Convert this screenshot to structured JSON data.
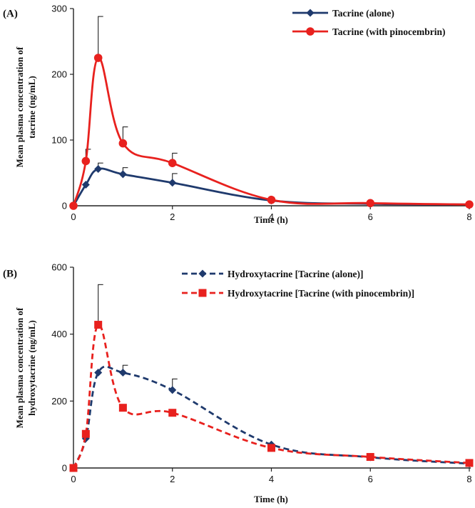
{
  "colors": {
    "navy": "#1f3a6d",
    "red": "#e8211e",
    "axis": "#222222"
  },
  "chart_data": [
    {
      "type": "line",
      "panel": "(A)",
      "title": "",
      "xlabel": "Time (h)",
      "ylabel": "Mean plasma concentration of tacrine (ng/mL)",
      "ylabel_lines": [
        "Mean plasma concentration of",
        "tacrine (ng/mL)"
      ],
      "xlim": [
        0,
        8
      ],
      "ylim": [
        0,
        300
      ],
      "xticks": [
        0,
        2,
        4,
        6,
        8
      ],
      "yticks": [
        0,
        100,
        200,
        300
      ],
      "legend_position": "top-right",
      "series": [
        {
          "name": "Tacrine (alone)",
          "color": "#1f3a6d",
          "line_style": "solid",
          "marker": "diamond",
          "x": [
            0,
            0.25,
            0.5,
            1,
            2,
            4,
            6,
            8
          ],
          "y": [
            0,
            32,
            56,
            48,
            35,
            8,
            3,
            2
          ],
          "err": [
            0,
            0,
            9,
            10,
            14,
            0,
            0,
            0
          ]
        },
        {
          "name": "Tacrine (with pinocembrin)",
          "color": "#e8211e",
          "line_style": "solid",
          "marker": "circle",
          "x": [
            0,
            0.25,
            0.5,
            1,
            2,
            4,
            6,
            8
          ],
          "y": [
            0,
            68,
            225,
            95,
            65,
            9,
            4,
            2
          ],
          "err": [
            0,
            18,
            63,
            25,
            15,
            0,
            0,
            0
          ]
        }
      ]
    },
    {
      "type": "line",
      "panel": "(B)",
      "title": "",
      "xlabel": "Time (h)",
      "ylabel": "Mean plasma concentration of hydroxytacrine (ng/mL)",
      "ylabel_lines": [
        "Mean plasma concentration of",
        "hydroxytacrine (ng/mL)"
      ],
      "xlim": [
        0,
        8
      ],
      "ylim": [
        0,
        600
      ],
      "xticks": [
        0,
        2,
        4,
        6,
        8
      ],
      "yticks": [
        0,
        200,
        400,
        600
      ],
      "legend_position": "top-right",
      "series": [
        {
          "name": "Hydroxytacrine [Tacrine (alone)]",
          "color": "#1f3a6d",
          "line_style": "dashed",
          "marker": "diamond",
          "x": [
            0,
            0.25,
            0.5,
            1,
            2,
            4,
            6,
            8
          ],
          "y": [
            0,
            88,
            285,
            285,
            233,
            70,
            32,
            13
          ],
          "err": [
            0,
            0,
            0,
            22,
            33,
            0,
            0,
            0
          ]
        },
        {
          "name": "Hydroxytacrine [Tacrine (with pinocembrin)]",
          "color": "#e8211e",
          "line_style": "dashed",
          "marker": "square",
          "x": [
            0,
            0.25,
            0.5,
            1,
            2,
            4,
            6,
            8
          ],
          "y": [
            0,
            102,
            428,
            180,
            165,
            60,
            33,
            15
          ],
          "err": [
            0,
            0,
            120,
            0,
            0,
            0,
            0,
            0
          ]
        }
      ]
    }
  ]
}
